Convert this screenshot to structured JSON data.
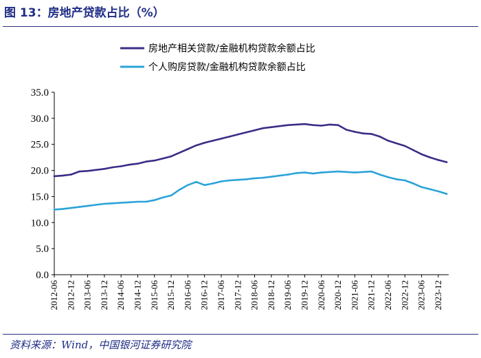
{
  "header": {
    "title": "图 13：房地产贷款占比（%）"
  },
  "footer": {
    "source": "资料来源：Wind，中国银河证券研究院"
  },
  "colors": {
    "series1": "#3b2d86",
    "series2": "#2ba3d8",
    "accent": "#1f2d86"
  },
  "chart_data": {
    "type": "line",
    "title": "房地产贷款占比（%）",
    "xlabel": "",
    "ylabel": "",
    "ylim": [
      0,
      35
    ],
    "yticks": [
      "0.0",
      "5.0",
      "10.0",
      "15.0",
      "20.0",
      "25.0",
      "30.0",
      "35.0"
    ],
    "legend_position": "top",
    "x": [
      "2012-06",
      "2012-09",
      "2012-12",
      "2013-03",
      "2013-06",
      "2013-09",
      "2013-12",
      "2014-03",
      "2014-06",
      "2014-09",
      "2014-12",
      "2015-03",
      "2015-06",
      "2015-09",
      "2015-12",
      "2016-03",
      "2016-06",
      "2016-09",
      "2016-12",
      "2017-03",
      "2017-06",
      "2017-09",
      "2017-12",
      "2018-03",
      "2018-06",
      "2018-09",
      "2018-12",
      "2019-03",
      "2019-06",
      "2019-09",
      "2019-12",
      "2020-03",
      "2020-06",
      "2020-09",
      "2020-12",
      "2021-03",
      "2021-06",
      "2021-09",
      "2021-12",
      "2022-03",
      "2022-06",
      "2022-09",
      "2022-12",
      "2023-03",
      "2023-06",
      "2023-09",
      "2023-12",
      "2024-03"
    ],
    "xtick_labels": [
      "2012-06",
      "2012-12",
      "2013-06",
      "2013-12",
      "2014-06",
      "2014-12",
      "2015-06",
      "2015-12",
      "2016-06",
      "2016-12",
      "2017-06",
      "2017-12",
      "2018-06",
      "2018-12",
      "2019-06",
      "2019-12",
      "2020-06",
      "2020-12",
      "2021-06",
      "2021-12",
      "2022-06",
      "2022-12",
      "2023-06",
      "2023-12"
    ],
    "series": [
      {
        "name": "房地产相关贷款/金融机构贷款余额占比",
        "values": [
          18.9,
          19.0,
          19.2,
          19.8,
          19.9,
          20.1,
          20.3,
          20.6,
          20.8,
          21.1,
          21.3,
          21.7,
          21.9,
          22.3,
          22.7,
          23.4,
          24.1,
          24.8,
          25.3,
          25.7,
          26.1,
          26.5,
          26.9,
          27.3,
          27.7,
          28.1,
          28.3,
          28.5,
          28.7,
          28.8,
          28.9,
          28.7,
          28.6,
          28.8,
          28.7,
          27.8,
          27.4,
          27.1,
          27.0,
          26.5,
          25.7,
          25.2,
          24.7,
          23.9,
          23.1,
          22.5,
          22.0,
          21.6
        ]
      },
      {
        "name": "个人购房贷款/金融机构贷款余额占比",
        "values": [
          12.5,
          12.6,
          12.8,
          13.0,
          13.2,
          13.4,
          13.6,
          13.7,
          13.8,
          13.9,
          14.0,
          14.0,
          14.3,
          14.8,
          15.2,
          16.3,
          17.2,
          17.8,
          17.2,
          17.5,
          17.9,
          18.1,
          18.2,
          18.3,
          18.5,
          18.6,
          18.8,
          19.0,
          19.2,
          19.5,
          19.6,
          19.4,
          19.6,
          19.7,
          19.8,
          19.7,
          19.6,
          19.7,
          19.8,
          19.2,
          18.7,
          18.3,
          18.1,
          17.5,
          16.8,
          16.4,
          16.0,
          15.5
        ]
      }
    ]
  }
}
